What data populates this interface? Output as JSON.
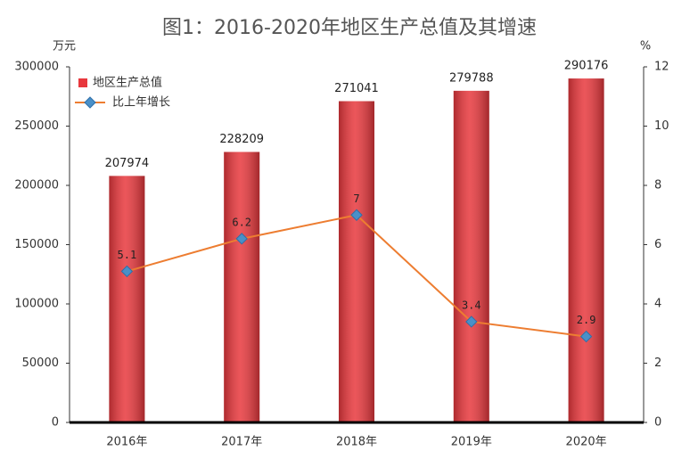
{
  "chart_data": {
    "type": "bar",
    "title": "图1：2016-2020年地区生产总值及其增速",
    "y_label": "万元",
    "y2_label": "%",
    "categories": [
      "2016年",
      "2017年",
      "2018年",
      "2019年",
      "2020年"
    ],
    "series": [
      {
        "name": "地区生产总值",
        "type": "bar",
        "color": "#e8383d",
        "values": [
          207974,
          228209,
          271041,
          279788,
          290176
        ]
      },
      {
        "name": "比上年增长",
        "type": "line",
        "axis": "y2",
        "color": "#ed7d31",
        "marker_color": "#4a90c8",
        "values": [
          5.1,
          6.2,
          7,
          3.4,
          2.9
        ]
      }
    ],
    "ylim": [
      0,
      300000
    ],
    "yticks": [
      0,
      50000,
      100000,
      150000,
      200000,
      250000,
      300000
    ],
    "y2lim": [
      0,
      12
    ],
    "y2ticks": [
      0,
      2,
      4,
      6,
      8,
      10,
      12
    ],
    "legend": "upper left"
  }
}
